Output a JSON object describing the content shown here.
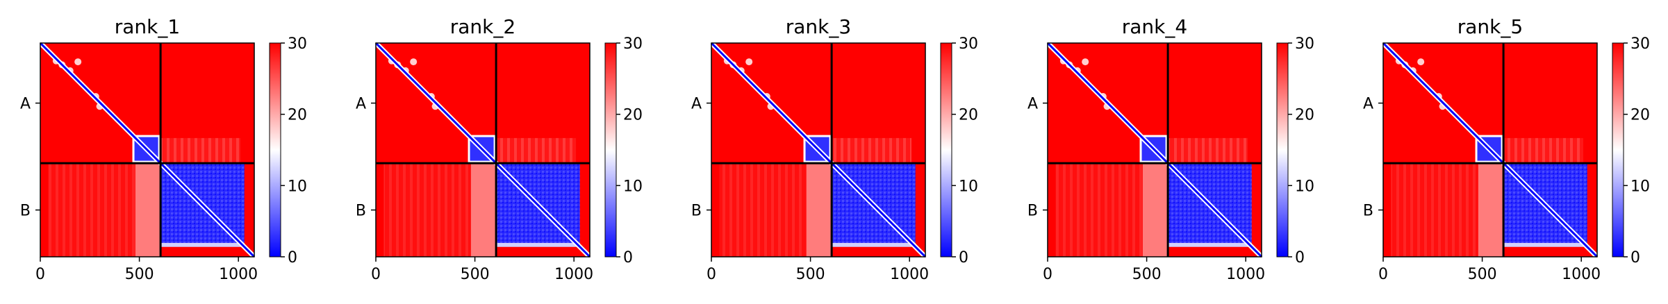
{
  "chart_data": {
    "type": "heatmap",
    "colormap": {
      "low": "#0000ff",
      "mid": "#ffffff",
      "high": "#ff0000"
    },
    "color_range": [
      0,
      30
    ],
    "colorbar_ticks": [
      "0",
      "10",
      "20",
      "30"
    ],
    "x_range": [
      0,
      1080
    ],
    "x_ticks": [
      0,
      500,
      1000
    ],
    "x_tick_labels": [
      "0",
      "500",
      "1000"
    ],
    "chain_boundary": 607,
    "total_length": 1080,
    "y_tick_labels": [
      "A",
      "B"
    ],
    "panels": [
      {
        "title": "rank_1"
      },
      {
        "title": "rank_2"
      },
      {
        "title": "rank_3"
      },
      {
        "title": "rank_4"
      },
      {
        "title": "rank_5"
      }
    ]
  }
}
